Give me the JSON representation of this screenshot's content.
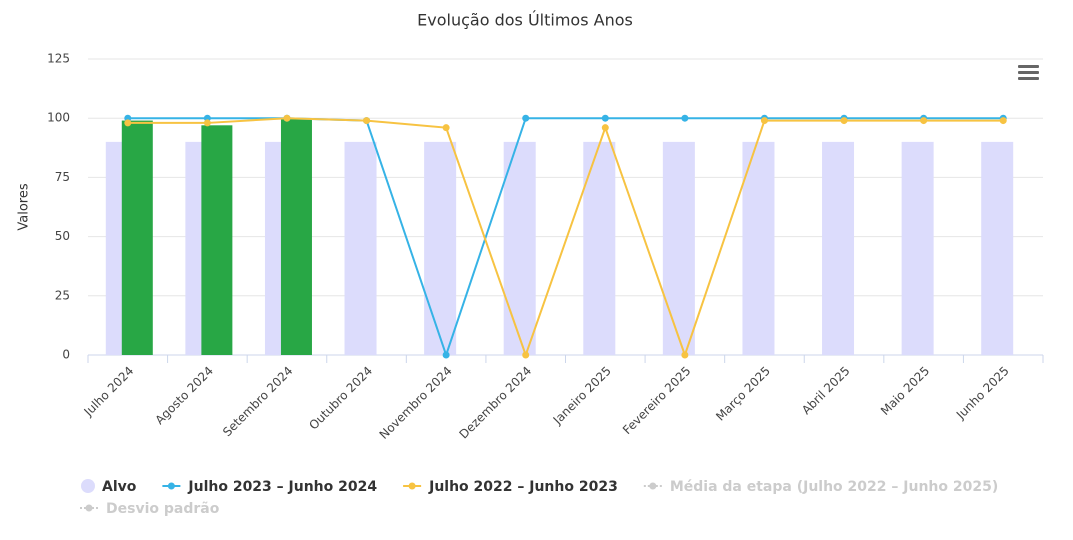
{
  "chart_data": {
    "type": "bar-line",
    "title": "Evolução dos Últimos Anos",
    "y_label": "Valores",
    "categories": [
      "Julho 2024",
      "Agosto 2024",
      "Setembro 2024",
      "Outubro 2024",
      "Novembro 2024",
      "Dezembro 2024",
      "Janeiro 2025",
      "Fevereiro 2025",
      "Março 2025",
      "Abril 2025",
      "Maio 2025",
      "Junho 2025"
    ],
    "series": [
      {
        "name": "Alvo",
        "kind": "column",
        "color": "#dcdcfc",
        "values": [
          90,
          90,
          90,
          90,
          90,
          90,
          90,
          90,
          90,
          90,
          90,
          90
        ]
      },
      {
        "kind": "column",
        "color": "#28a745",
        "values": [
          99,
          97,
          100,
          null,
          null,
          null,
          null,
          null,
          null,
          null,
          null,
          null
        ]
      },
      {
        "name": "Julho 2023 – Junho 2024",
        "kind": "line",
        "color": "#36b3e6",
        "values": [
          100,
          100,
          100,
          99,
          0,
          100,
          100,
          100,
          100,
          100,
          100,
          100
        ]
      },
      {
        "name": "Julho 2022 – Junho 2023",
        "kind": "line",
        "color": "#f7c342",
        "values": [
          98,
          98,
          100,
          99,
          96,
          0,
          96,
          0,
          99,
          99,
          99,
          99
        ]
      }
    ],
    "hidden_series": [
      {
        "name": "Média da etapa (Julho 2022 – Junho 2025)",
        "color": "#cccccc"
      },
      {
        "name": "Desvio padrão",
        "color": "#cccccc"
      }
    ],
    "ylim": [
      0,
      125
    ],
    "yticks": [
      0,
      25,
      50,
      75,
      100,
      125
    ],
    "grid": true
  }
}
